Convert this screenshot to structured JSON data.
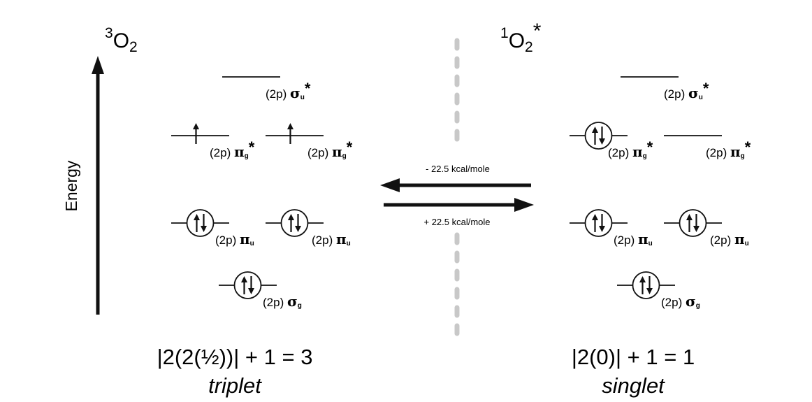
{
  "triplet": {
    "species": {
      "sup": "3",
      "main": "O",
      "sub": "2",
      "star": ""
    },
    "formula": "|2(2(½))| + 1 = 3",
    "multiplicity": "triplet"
  },
  "singlet": {
    "species": {
      "sup": "1",
      "main": "O",
      "sub": "2",
      "star": "*"
    },
    "formula": "|2(0)| + 1 = 1",
    "multiplicity": "singlet"
  },
  "energy_axis": {
    "label": "Energy"
  },
  "transitions": {
    "reverse": "- 22.5 kcal/mole",
    "forward": "+ 22.5 kcal/mole"
  },
  "orbital_labels": {
    "prefix": "(2p)",
    "sigma_u": {
      "greek": "σ",
      "sub": "u",
      "star": "*"
    },
    "pi_g": {
      "greek": "π",
      "sub": "g",
      "star": "*"
    },
    "pi_u": {
      "greek": "π",
      "sub": "u",
      "star": ""
    },
    "sigma_g": {
      "greek": "σ",
      "sub": "g",
      "star": ""
    }
  },
  "occupancy": {
    "triplet": {
      "sigma_u": 0,
      "pi_g_left": 1,
      "pi_g_right": 1,
      "pi_u_left": 2,
      "pi_u_right": 2,
      "sigma_g": 2
    },
    "singlet": {
      "sigma_u": 0,
      "pi_g_left": 2,
      "pi_g_right": 0,
      "pi_u_left": 2,
      "pi_u_right": 2,
      "sigma_g": 2
    }
  },
  "colors": {
    "ink": "#111111",
    "divider": "#c8c8c8"
  }
}
